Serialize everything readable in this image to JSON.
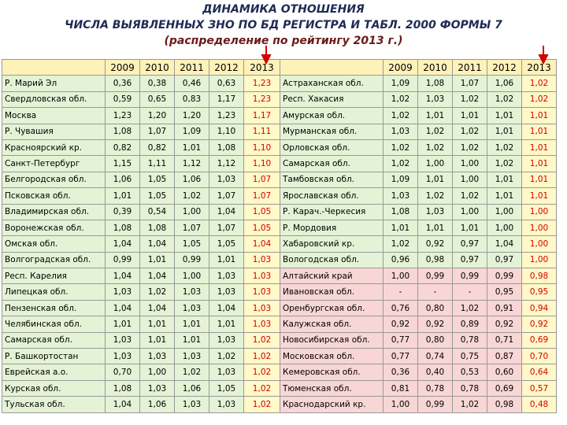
{
  "title": [
    "ДИНАМИКА ОТНОШЕНИЯ",
    "ЧИСЛА ВЫЯВЛЕННЫХ ЗНО ПО БД РЕГИСТРА И ТАБЛ. 2000 ФОРМЫ 7",
    "(распределение по рейтингу 2013 г.)"
  ],
  "table": {
    "header": {
      "left": [
        "2009",
        "2010",
        "2011",
        "2012",
        "2013"
      ],
      "right": [
        "2009",
        "2010",
        "2011",
        "2012",
        "2013"
      ]
    },
    "rows": [
      [
        "Р. Марий Эл",
        "0,36",
        "0,38",
        "0,46",
        "0,63",
        "1,23",
        "Астраханская обл.",
        "1,09",
        "1,08",
        "1,07",
        "1,06",
        "1,02"
      ],
      [
        "Свердловская обл.",
        "0,59",
        "0,65",
        "0,83",
        "1,17",
        "1,23",
        "Респ. Хакасия",
        "1,02",
        "1,03",
        "1,02",
        "1,02",
        "1,02"
      ],
      [
        "Москва",
        "1,23",
        "1,20",
        "1,20",
        "1,23",
        "1,17",
        "Амурская обл.",
        "1,02",
        "1,01",
        "1,01",
        "1,01",
        "1,01"
      ],
      [
        "Р. Чувашия",
        "1,08",
        "1,07",
        "1,09",
        "1,10",
        "1,11",
        "Мурманская обл.",
        "1,03",
        "1,02",
        "1,02",
        "1,01",
        "1,01"
      ],
      [
        "Красноярский кр.",
        "0,82",
        "0,82",
        "1,01",
        "1,08",
        "1,10",
        "Орловская обл.",
        "1,02",
        "1,02",
        "1,02",
        "1,02",
        "1,01"
      ],
      [
        "Санкт-Петербург",
        "1,15",
        "1,11",
        "1,12",
        "1,12",
        "1,10",
        "Самарская обл.",
        "1,02",
        "1,00",
        "1,00",
        "1,02",
        "1,01"
      ],
      [
        "Белгородская обл.",
        "1,06",
        "1,05",
        "1,06",
        "1,03",
        "1,07",
        "Тамбовская обл.",
        "1,09",
        "1,01",
        "1,00",
        "1,01",
        "1,01"
      ],
      [
        "Псковская обл.",
        "1,01",
        "1,05",
        "1,02",
        "1,07",
        "1,07",
        "Ярославская обл.",
        "1,03",
        "1,02",
        "1,02",
        "1,01",
        "1,01"
      ],
      [
        "Владимирская обл.",
        "0,39",
        "0,54",
        "1,00",
        "1,04",
        "1,05",
        "Р. Карач.-Черкесия",
        "1,08",
        "1,03",
        "1,00",
        "1,00",
        "1,00"
      ],
      [
        "Воронежская обл.",
        "1,08",
        "1,08",
        "1,07",
        "1,07",
        "1,05",
        "Р. Мордовия",
        "1,01",
        "1,01",
        "1,01",
        "1,00",
        "1,00"
      ],
      [
        "Омская обл.",
        "1,04",
        "1,04",
        "1,05",
        "1,05",
        "1,04",
        "Хабаровский кр.",
        "1,02",
        "0,92",
        "0,97",
        "1,04",
        "1,00"
      ],
      [
        "Волгоградская обл.",
        "0,99",
        "1,01",
        "0,99",
        "1,01",
        "1,03",
        "Вологодская обл.",
        "0,96",
        "0,98",
        "0,97",
        "0,97",
        "1,00"
      ],
      [
        "Респ. Карелия",
        "1,04",
        "1,04",
        "1,00",
        "1,03",
        "1,03",
        "Алтайский край",
        "1,00",
        "0,99",
        "0,99",
        "0,99",
        "0,98"
      ],
      [
        "Липецкая обл.",
        "1,03",
        "1,02",
        "1,03",
        "1,03",
        "1,03",
        "Ивановская обл.",
        "-",
        "-",
        "-",
        "0,95",
        "0,95"
      ],
      [
        "Пензенская обл.",
        "1,04",
        "1,04",
        "1,03",
        "1,04",
        "1,03",
        "Оренбургская обл.",
        "0,76",
        "0,80",
        "1,02",
        "0,91",
        "0,94"
      ],
      [
        "Челябинская обл.",
        "1,01",
        "1,01",
        "1,01",
        "1,01",
        "1,03",
        "Калужская обл.",
        "0,92",
        "0,92",
        "0,89",
        "0,92",
        "0,92"
      ],
      [
        "Самарская обл.",
        "1,03",
        "1,01",
        "1,01",
        "1,03",
        "1,02",
        "Новосибирская обл.",
        "0,77",
        "0,80",
        "0,78",
        "0,71",
        "0,69"
      ],
      [
        "Р. Башкортостан",
        "1,03",
        "1,03",
        "1,03",
        "1,02",
        "1,02",
        "Московская обл.",
        "0,77",
        "0,74",
        "0,75",
        "0,87",
        "0,70"
      ],
      [
        "Еврейская а.о.",
        "0,70",
        "1,00",
        "1,02",
        "1,03",
        "1,02",
        "Кемеровская обл.",
        "0,36",
        "0,40",
        "0,53",
        "0,60",
        "0,64"
      ],
      [
        "Курская обл.",
        "1,08",
        "1,03",
        "1,06",
        "1,05",
        "1,02",
        "Тюменская обл.",
        "0,81",
        "0,78",
        "0,78",
        "0,69",
        "0,57"
      ],
      [
        "Тульская обл.",
        "1,04",
        "1,06",
        "1,03",
        "1,03",
        "1,02",
        "Краснодарский кр.",
        "1,00",
        "0,99",
        "1,02",
        "0,98",
        "0,48"
      ]
    ]
  }
}
